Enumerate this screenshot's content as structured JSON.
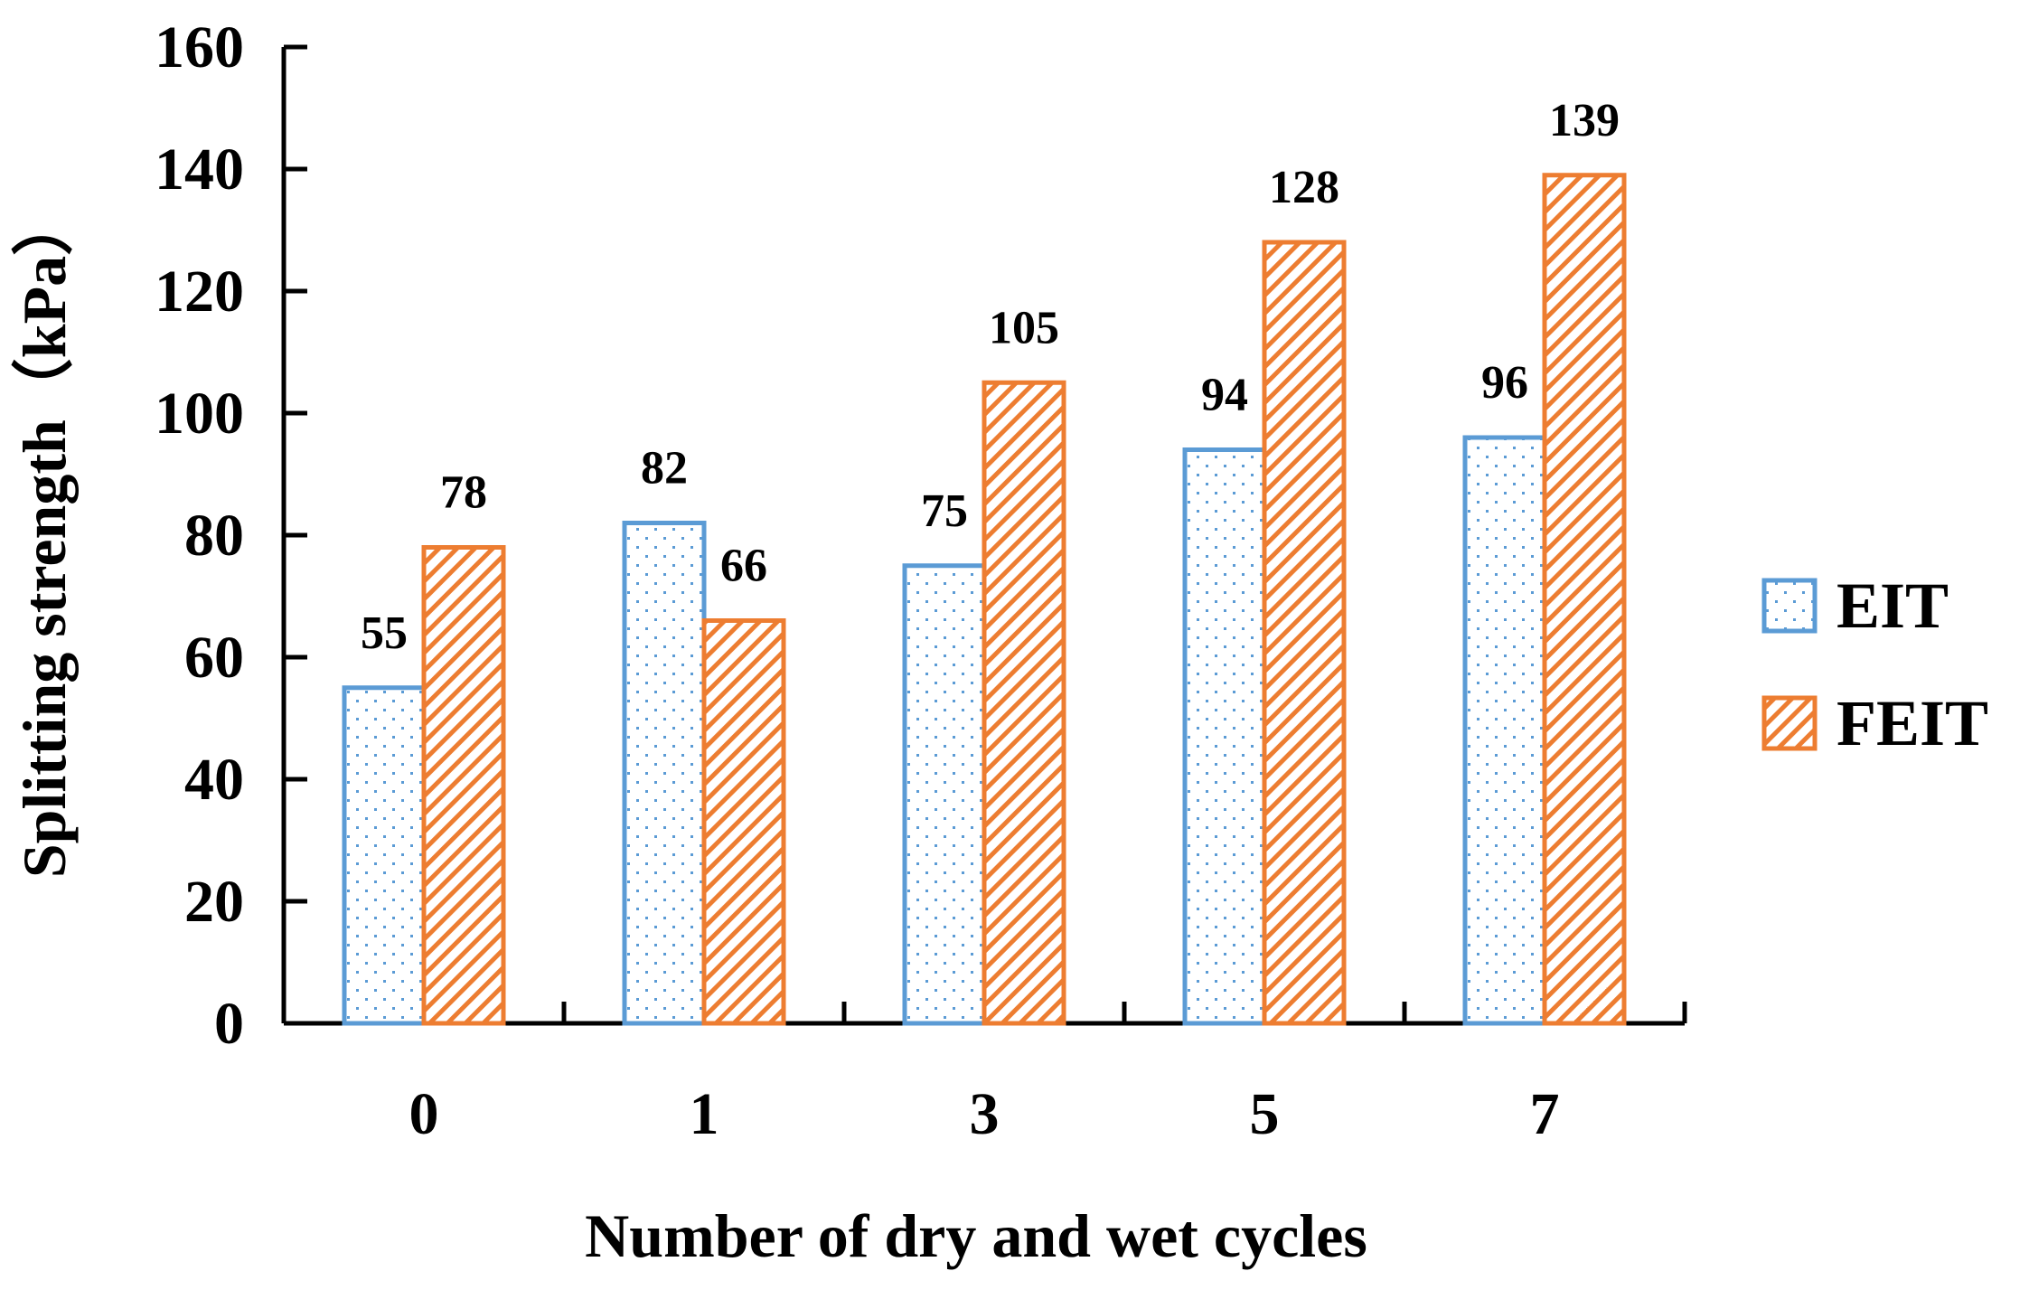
{
  "chart_data": {
    "type": "bar",
    "xlabel": "Number of dry and wet cycles",
    "ylabel": "Splitting strength（kPa）",
    "ylim": [
      0,
      160
    ],
    "yticks": [
      0,
      20,
      40,
      60,
      80,
      100,
      120,
      140,
      160
    ],
    "categories": [
      "0",
      "1",
      "3",
      "5",
      "7"
    ],
    "series": [
      {
        "name": "EIT",
        "values": [
          55,
          82,
          75,
          94,
          96
        ],
        "color": "#5b9bd5",
        "pattern": "dots"
      },
      {
        "name": "FEIT",
        "values": [
          78,
          66,
          105,
          128,
          139
        ],
        "color": "#ed7d31",
        "pattern": "diagonal-hatch"
      }
    ],
    "legend": "right",
    "grid": false
  }
}
